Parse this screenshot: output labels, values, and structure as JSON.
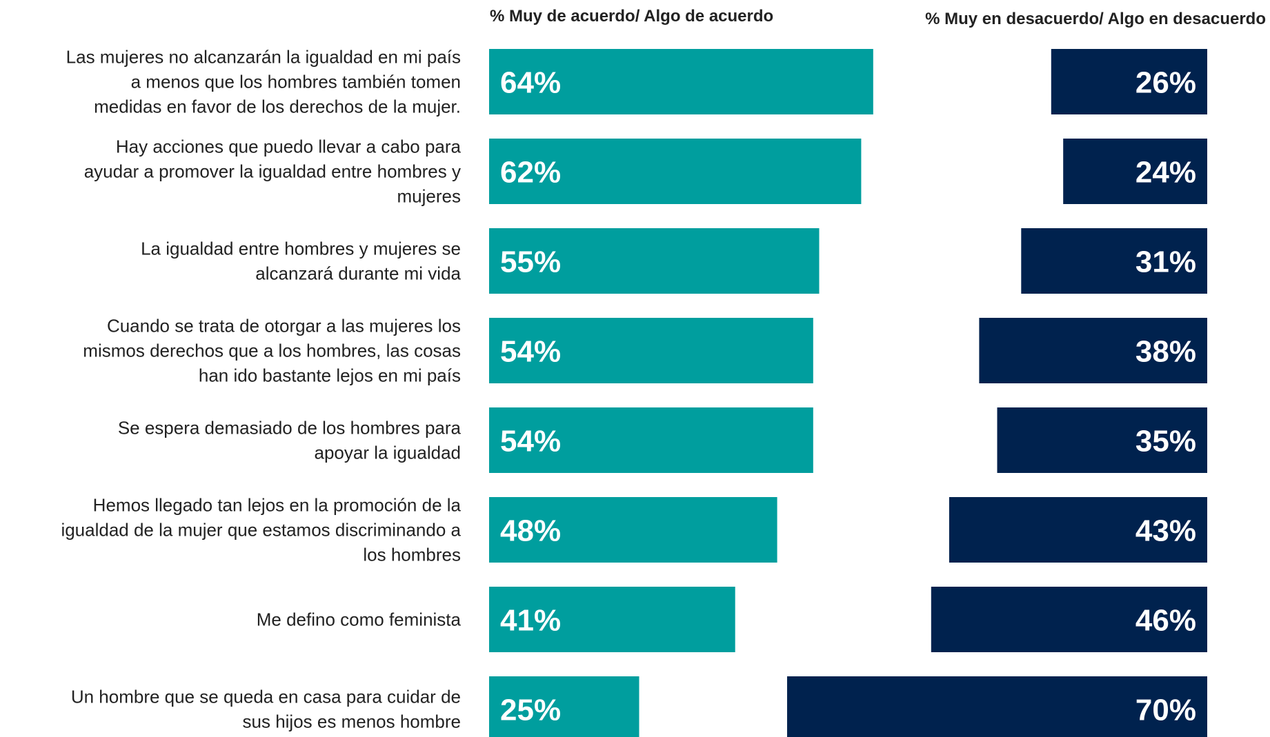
{
  "chart_data": {
    "type": "bar",
    "orientation": "horizontal",
    "headers": {
      "agree": "% Muy de acuerdo/ Algo de acuerdo",
      "disagree": "% Muy en desacuerdo/ Algo en desacuerdo"
    },
    "categories": [
      [
        "Las mujeres no alcanzarán la igualdad en mi país",
        "a menos que los hombres también tomen",
        "medidas en favor de los derechos de la mujer."
      ],
      [
        "Hay acciones que puedo llevar a cabo para",
        "ayudar a promover la igualdad entre hombres y",
        "mujeres"
      ],
      [
        "La igualdad entre hombres y mujeres se",
        "alcanzará durante mi vida"
      ],
      [
        "Cuando se trata de otorgar a las mujeres los",
        "mismos derechos que a los hombres, las cosas",
        "han ido bastante lejos en mi país"
      ],
      [
        "Se espera demasiado de los hombres para",
        "apoyar la igualdad"
      ],
      [
        "Hemos llegado tan lejos en la promoción de la",
        "igualdad de la mujer que estamos discriminando a",
        "los hombres"
      ],
      [
        "Me defino como feminista"
      ],
      [
        "Un hombre que se queda en casa para cuidar de",
        "sus hijos es menos hombre"
      ]
    ],
    "series": [
      {
        "key": "agree",
        "values": [
          64,
          62,
          55,
          54,
          54,
          48,
          41,
          25
        ],
        "labels": [
          "64%",
          "62%",
          "55%",
          "54%",
          "54%",
          "48%",
          "41%",
          "25%"
        ],
        "color": "#009E9E"
      },
      {
        "key": "disagree",
        "values": [
          26,
          24,
          31,
          38,
          35,
          43,
          46,
          70
        ],
        "labels": [
          "26%",
          "24%",
          "31%",
          "38%",
          "35%",
          "43%",
          "46%",
          "70%"
        ],
        "color": "#00224E"
      }
    ],
    "xlim": [
      0,
      100
    ],
    "grid": false,
    "legend": "top"
  }
}
